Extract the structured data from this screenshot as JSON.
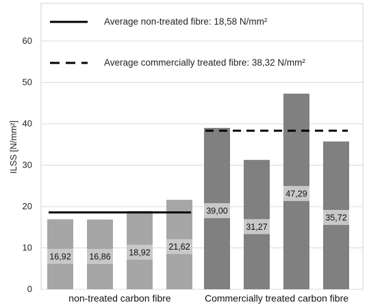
{
  "chart_data": {
    "type": "bar",
    "ylabel": "ILSS [N/mm²]",
    "ylim": [
      0,
      65
    ],
    "yticks": [
      0,
      10,
      20,
      30,
      40,
      50,
      60
    ],
    "grid": "horizontal",
    "groups": [
      {
        "label": "non-treated carbon fibre",
        "color": "#a6a6a6",
        "values": [
          16.92,
          16.86,
          18.92,
          21.62
        ],
        "data_labels": [
          "16,92",
          "16,86",
          "18,92",
          "21,62"
        ]
      },
      {
        "label": "Commercially treated carbon fibre",
        "color": "#808080",
        "values": [
          39.0,
          31.27,
          47.29,
          35.72
        ],
        "data_labels": [
          "39,00",
          "31,27",
          "47,29",
          "35,72"
        ]
      }
    ],
    "reference_lines": [
      {
        "name": "Average non-treated fibre: 18,58 N/mm²",
        "value": 18.58,
        "style": "solid",
        "group": 0
      },
      {
        "name": "Average commercially treated fibre: 38,32 N/mm²",
        "value": 38.32,
        "style": "dashed",
        "group": 1
      }
    ],
    "legend_position": "top-left",
    "label_box_color": "#c8c8c8"
  }
}
